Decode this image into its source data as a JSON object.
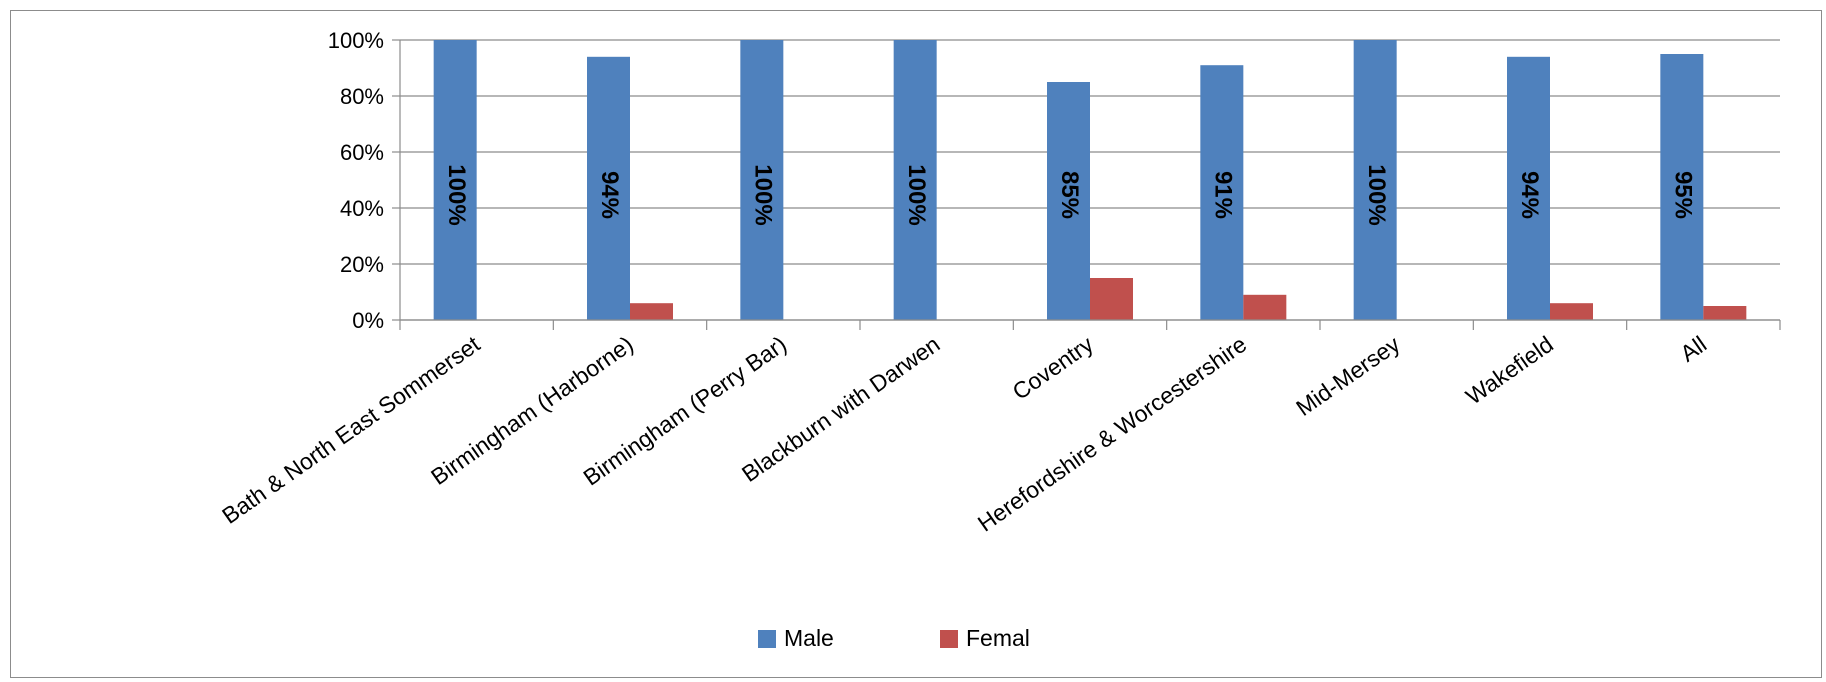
{
  "chart_data": {
    "type": "bar",
    "categories": [
      "Bath & North East Sommerset",
      "Birmingham (Harborne)",
      "Birmingham (Perry Bar)",
      "Blackburn with Darwen",
      "Coventry",
      "Herefordshire & Worcestershire",
      "Mid-Mersey",
      "Wakefield",
      "All"
    ],
    "series": [
      {
        "name": "Male",
        "values": [
          100,
          94,
          100,
          100,
          85,
          91,
          100,
          94,
          95
        ],
        "color": "#4f81bd",
        "data_labels": [
          "100%",
          "94%",
          "100%",
          "100%",
          "85%",
          "91%",
          "100%",
          "94%",
          "95%"
        ]
      },
      {
        "name": "Femal",
        "values": [
          0,
          6,
          0,
          0,
          15,
          9,
          0,
          6,
          5
        ],
        "color": "#c0504d"
      }
    ],
    "y_ticks": [
      "0%",
      "20%",
      "40%",
      "60%",
      "80%",
      "100%"
    ],
    "ylim": [
      0,
      100
    ],
    "grid": true,
    "legend_position": "bottom"
  }
}
